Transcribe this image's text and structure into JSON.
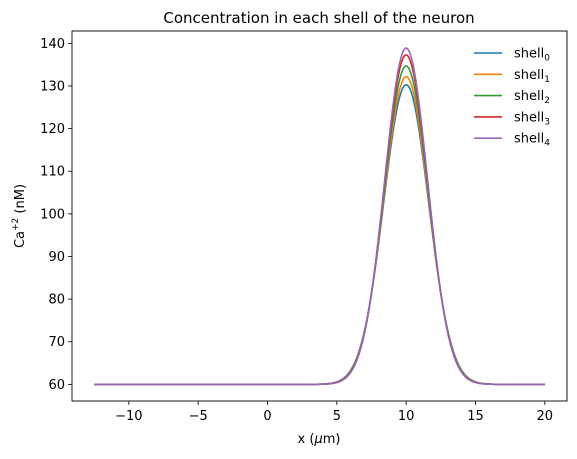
{
  "chart_data": {
    "type": "line",
    "title": "Concentration in each shell of the neuron",
    "xlabel_base": "x (",
    "xlabel_mu": "μ",
    "xlabel_tail": "m)",
    "ylabel_base": "Ca",
    "ylabel_sup": "+2",
    "ylabel_tail": " (nM)",
    "xlim": [
      -14.1,
      21.6
    ],
    "ylim": [
      56.1,
      142.9
    ],
    "x_ticks": [
      -10,
      -5,
      0,
      5,
      10,
      15,
      20
    ],
    "x_tick_labels": [
      "−10",
      "−5",
      "0",
      "5",
      "10",
      "15",
      "20"
    ],
    "y_ticks": [
      60,
      70,
      80,
      90,
      100,
      110,
      120,
      130,
      140
    ],
    "y_tick_labels": [
      "60",
      "70",
      "80",
      "90",
      "100",
      "110",
      "120",
      "130",
      "140"
    ],
    "grid": false,
    "legend_position": "top-right",
    "x_range": [
      -12.5,
      20
    ],
    "baseline": 60,
    "peak_center": 10,
    "series": [
      {
        "name": "shell",
        "sub": "0",
        "color": "#1f77b4",
        "peak": 130.3,
        "sigma": 1.62
      },
      {
        "name": "shell",
        "sub": "1",
        "color": "#ff7f0e",
        "peak": 132.2,
        "sigma": 1.6
      },
      {
        "name": "shell",
        "sub": "2",
        "color": "#2ca02c",
        "peak": 134.7,
        "sigma": 1.58
      },
      {
        "name": "shell",
        "sub": "3",
        "color": "#d62728",
        "peak": 137.3,
        "sigma": 1.56
      },
      {
        "name": "shell",
        "sub": "4",
        "color": "#9467bd",
        "peak": 138.9,
        "sigma": 1.55
      }
    ]
  }
}
